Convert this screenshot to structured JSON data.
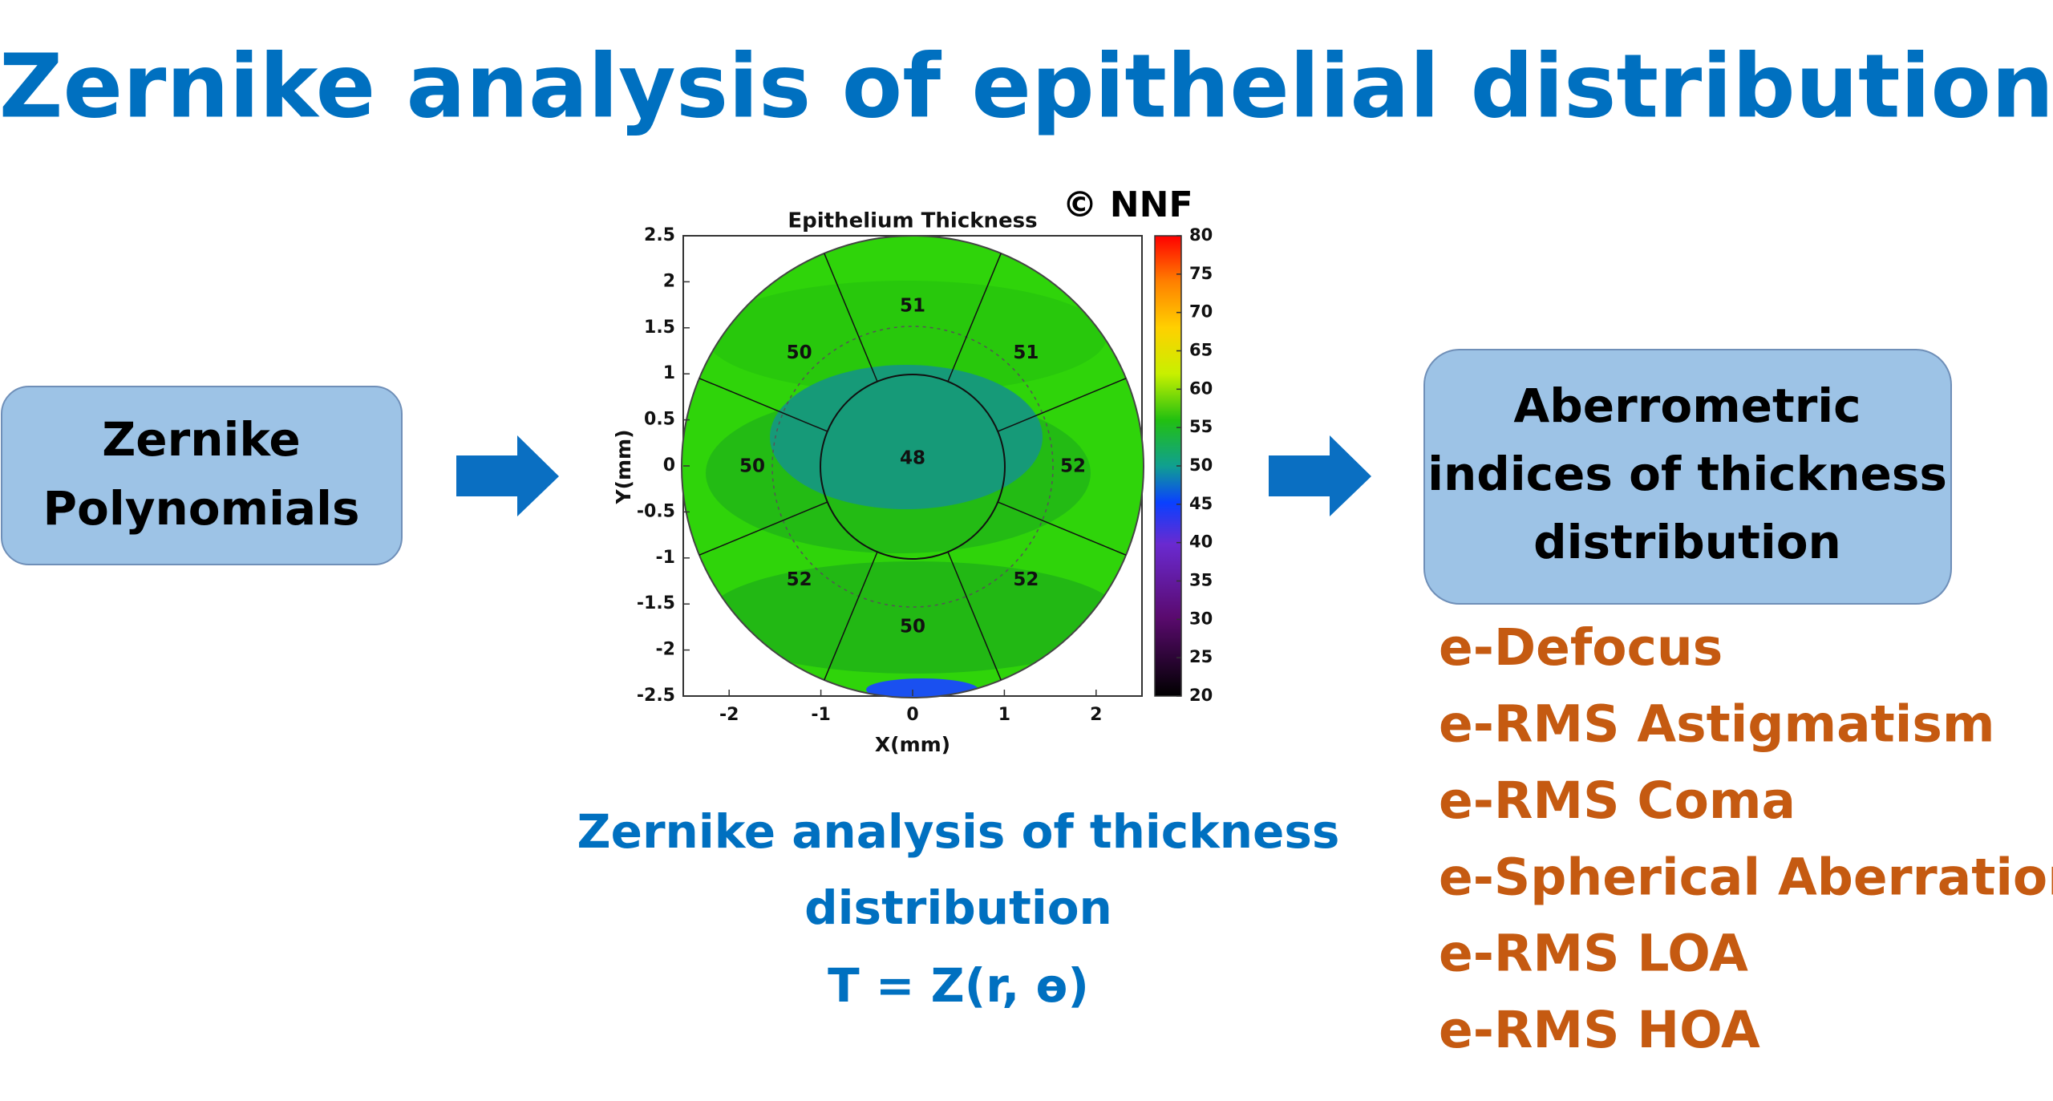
{
  "title": "Zernike analysis of epithelial distribution",
  "left_box": {
    "lines": [
      "Zernike",
      "Polynomials"
    ]
  },
  "map": {
    "title": "Epithelium Thickness",
    "copyright": "© NNF",
    "xlabel": "X(mm)",
    "ylabel": "Y(mm)",
    "xlim": [
      -2.5,
      2.5
    ],
    "ylim": [
      -2.5,
      2.5
    ],
    "xticks": [
      -2,
      -1,
      0,
      1,
      2
    ],
    "yticks": [
      -2.5,
      -2,
      -1.5,
      -1,
      -0.5,
      0,
      0.5,
      1,
      1.5,
      2,
      2.5
    ],
    "colorbar_lim": [
      20,
      80
    ],
    "colorbar_ticks": [
      20,
      25,
      30,
      35,
      40,
      45,
      50,
      55,
      60,
      65,
      70,
      75,
      80
    ],
    "center_value": 48,
    "sector_values": [
      51,
      51,
      52,
      52,
      50,
      52,
      50,
      50
    ]
  },
  "caption": {
    "lines": [
      "Zernike analysis of thickness",
      "distribution",
      "T = Z(r, ɵ)"
    ]
  },
  "right_box": {
    "lines": [
      "Aberrometric",
      "indices of thickness",
      "distribution"
    ]
  },
  "indices": [
    "e-Defocus",
    "e-RMS Astigmatism",
    "e-RMS Coma",
    "e-Spherical Aberration",
    "e-RMS LOA",
    "e-RMS HOA"
  ]
}
